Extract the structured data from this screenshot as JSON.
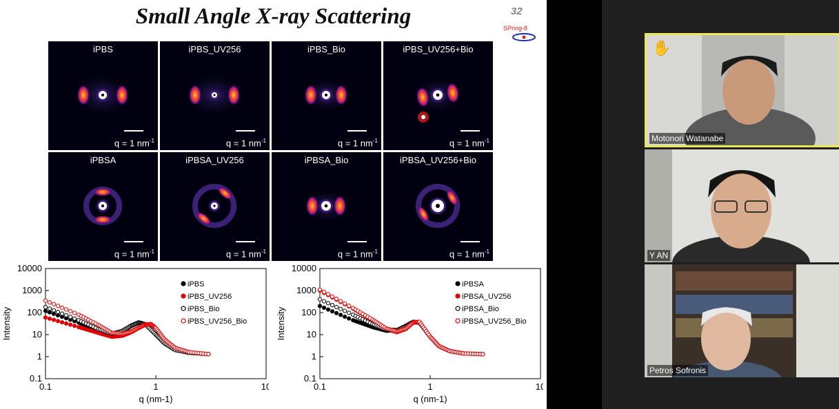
{
  "slide": {
    "title": "Small Angle X-ray Scattering",
    "page_number": "32",
    "logo_text": "SPring-8"
  },
  "saxs_images": [
    {
      "label": "iPBS",
      "scale": "q = 1 nm",
      "scale_sup": "-1"
    },
    {
      "label": "iPBS_UV256",
      "scale": "q = 1 nm",
      "scale_sup": "-1"
    },
    {
      "label": "iPBS_Bio",
      "scale": "q = 1 nm",
      "scale_sup": "-1"
    },
    {
      "label": "iPBS_UV256+Bio",
      "scale": "q = 1 nm",
      "scale_sup": "-1"
    },
    {
      "label": "iPBSA",
      "scale": "q = 1 nm",
      "scale_sup": "-1"
    },
    {
      "label": "iPBSA_UV256",
      "scale": "q = 1 nm",
      "scale_sup": "-1"
    },
    {
      "label": "iPBSA_Bio",
      "scale": "q = 1 nm",
      "scale_sup": "-1"
    },
    {
      "label": "iPBSA_UV256+Bio",
      "scale": "q = 1 nm",
      "scale_sup": "-1"
    }
  ],
  "chart_data": [
    {
      "type": "scatter",
      "xlabel": "q (nm-1)",
      "ylabel": "Intensity",
      "x_scale": "log",
      "y_scale": "log",
      "xlim": [
        0.1,
        10
      ],
      "ylim": [
        0.1,
        10000
      ],
      "x_ticks": [
        "0.1",
        "1",
        "10"
      ],
      "y_ticks": [
        "0.1",
        "1",
        "10",
        "100",
        "1000",
        "10000"
      ],
      "legend_position": "top-right",
      "series": [
        {
          "name": "iPBS",
          "marker": "filled",
          "color": "#000000",
          "x": [
            0.1,
            0.2,
            0.3,
            0.4,
            0.5,
            0.6,
            0.7,
            0.8,
            1.0,
            1.2,
            1.5,
            2.0,
            3.0
          ],
          "y": [
            120,
            35,
            16,
            10,
            14,
            25,
            35,
            30,
            10,
            4,
            2,
            1.5,
            1.3
          ]
        },
        {
          "name": "iPBS_UV256",
          "marker": "filled",
          "color": "#e00000",
          "x": [
            0.1,
            0.2,
            0.3,
            0.4,
            0.5,
            0.6,
            0.7,
            0.8,
            0.9,
            1.0,
            1.2,
            1.5,
            2.0,
            3.0
          ],
          "y": [
            60,
            22,
            12,
            8,
            9,
            13,
            20,
            28,
            30,
            20,
            6,
            2.5,
            1.6,
            1.3
          ]
        },
        {
          "name": "iPBS_Bio",
          "marker": "open",
          "color": "#000000",
          "x": [
            0.1,
            0.2,
            0.3,
            0.4,
            0.5,
            0.6,
            0.7,
            0.8,
            1.0,
            1.2,
            1.5,
            2.0,
            3.0
          ],
          "y": [
            180,
            45,
            18,
            11,
            15,
            26,
            36,
            30,
            10,
            4,
            2,
            1.5,
            1.3
          ]
        },
        {
          "name": "iPBS_UV256_Bio",
          "marker": "open",
          "color": "#e00000",
          "x": [
            0.1,
            0.2,
            0.3,
            0.4,
            0.5,
            0.6,
            0.7,
            0.8,
            0.9,
            1.0,
            1.2,
            1.5,
            2.0,
            3.0
          ],
          "y": [
            350,
            80,
            28,
            12,
            11,
            14,
            21,
            29,
            30,
            20,
            6,
            2.5,
            1.6,
            1.3
          ]
        }
      ]
    },
    {
      "type": "scatter",
      "xlabel": "q (nm-1)",
      "ylabel": "Intensity",
      "x_scale": "log",
      "y_scale": "log",
      "xlim": [
        0.1,
        10
      ],
      "ylim": [
        0.1,
        10000
      ],
      "x_ticks": [
        "0.1",
        "1",
        "10"
      ],
      "y_ticks": [
        "0.1",
        "1",
        "10",
        "100",
        "1000",
        "10000"
      ],
      "legend_position": "top-right",
      "series": [
        {
          "name": "iPBSA",
          "marker": "filled",
          "color": "#000000",
          "x": [
            0.1,
            0.2,
            0.3,
            0.4,
            0.5,
            0.6,
            0.7,
            0.8,
            1.0,
            1.2,
            1.5,
            2.0,
            3.0
          ],
          "y": [
            200,
            45,
            22,
            15,
            16,
            25,
            38,
            35,
            8,
            3,
            1.8,
            1.4,
            1.3
          ]
        },
        {
          "name": "iPBSA_UV256",
          "marker": "filled",
          "color": "#e00000",
          "x": [
            0.1,
            0.2,
            0.3,
            0.4,
            0.5,
            0.6,
            0.7,
            0.8,
            1.0,
            1.2,
            1.5,
            2.0,
            3.0
          ],
          "y": [
            1000,
            150,
            45,
            18,
            13,
            18,
            35,
            38,
            8,
            3,
            1.8,
            1.4,
            1.3
          ]
        },
        {
          "name": "iPBSA_Bio",
          "marker": "open",
          "color": "#000000",
          "x": [
            0.1,
            0.2,
            0.3,
            0.4,
            0.5,
            0.6,
            0.7,
            0.8,
            1.0,
            1.2,
            1.5,
            2.0,
            3.0
          ],
          "y": [
            400,
            80,
            30,
            17,
            16,
            24,
            37,
            35,
            8,
            3,
            1.8,
            1.4,
            1.3
          ]
        },
        {
          "name": "iPBSA_UV256_Bio",
          "marker": "open",
          "color": "#e00000",
          "x": [
            0.1,
            0.2,
            0.3,
            0.4,
            0.5,
            0.6,
            0.7,
            0.8,
            1.0,
            1.2,
            1.5,
            2.0,
            3.0
          ],
          "y": [
            1100,
            160,
            48,
            19,
            14,
            19,
            36,
            38,
            8,
            3,
            1.8,
            1.4,
            1.3
          ]
        }
      ]
    }
  ],
  "participants": [
    {
      "name": "Motonori Watanabe",
      "hand_raised": true,
      "hand_icon": "raised-hand-icon",
      "highlight_color": "#e8e85a"
    },
    {
      "name": "Y AN",
      "hand_raised": false
    },
    {
      "name": "Petros Sofronis",
      "hand_raised": false
    }
  ]
}
